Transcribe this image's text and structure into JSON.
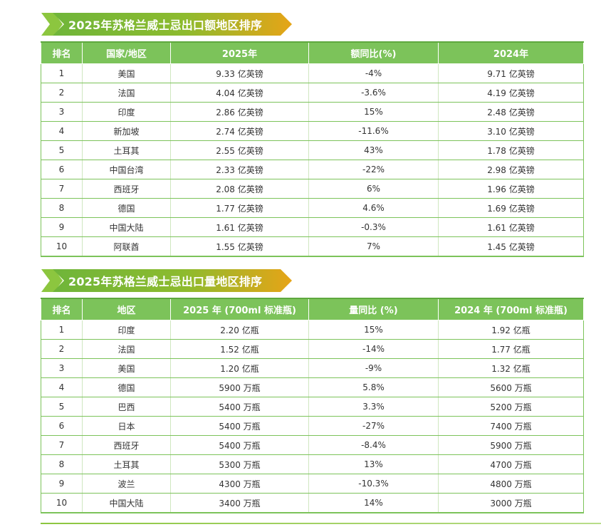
{
  "value_section": {
    "title": "2025年苏格兰威士忌出口额地区排序",
    "headers": [
      "排名",
      "国家/地区",
      "2025年",
      "额同比(%)",
      "2024年"
    ],
    "rows": [
      {
        "rank": "1",
        "region": "美国",
        "y2025": "9.33 亿英镑",
        "yoy": "-4%",
        "trend": "neg",
        "y2024": "9.71 亿英镑"
      },
      {
        "rank": "2",
        "region": "法国",
        "y2025": "4.04 亿英镑",
        "yoy": "-3.6%",
        "trend": "neg",
        "y2024": "4.19 亿英镑"
      },
      {
        "rank": "3",
        "region": "印度",
        "y2025": "2.86 亿英镑",
        "yoy": "15%",
        "trend": "pos",
        "y2024": "2.48 亿英镑"
      },
      {
        "rank": "4",
        "region": "新加坡",
        "y2025": "2.74 亿英镑",
        "yoy": "-11.6%",
        "trend": "neg",
        "y2024": "3.10 亿英镑"
      },
      {
        "rank": "5",
        "region": "土耳其",
        "y2025": "2.55 亿英镑",
        "yoy": "43%",
        "trend": "pos",
        "y2024": "1.78 亿英镑"
      },
      {
        "rank": "6",
        "region": "中国台湾",
        "y2025": "2.33 亿英镑",
        "yoy": "-22%",
        "trend": "neg",
        "y2024": "2.98 亿英镑"
      },
      {
        "rank": "7",
        "region": "西班牙",
        "y2025": "2.08 亿英镑",
        "yoy": "6%",
        "trend": "pos",
        "y2024": "1.96 亿英镑"
      },
      {
        "rank": "8",
        "region": "德国",
        "y2025": "1.77 亿英镑",
        "yoy": "4.6%",
        "trend": "pos",
        "y2024": "1.69 亿英镑"
      },
      {
        "rank": "9",
        "region": "中国大陆",
        "y2025": "1.61 亿英镑",
        "yoy": "-0.3%",
        "trend": "neg",
        "y2024": "1.61 亿英镑"
      },
      {
        "rank": "10",
        "region": "阿联酋",
        "y2025": "1.55 亿英镑",
        "yoy": "7%",
        "trend": "pos",
        "y2024": "1.45 亿英镑"
      }
    ]
  },
  "volume_section": {
    "title": "2025年苏格兰威士忌出口量地区排序",
    "headers": [
      "排名",
      "地区",
      "2025 年 (700ml 标准瓶)",
      "量同比 (%)",
      "2024 年 (700ml 标准瓶)"
    ],
    "rows": [
      {
        "rank": "1",
        "region": "印度",
        "y2025": "2.20 亿瓶",
        "yoy": "15%",
        "trend": "pos",
        "y2024": "1.92 亿瓶"
      },
      {
        "rank": "2",
        "region": "法国",
        "y2025": "1.52 亿瓶",
        "yoy": "-14%",
        "trend": "neg",
        "y2024": "1.77 亿瓶"
      },
      {
        "rank": "3",
        "region": "美国",
        "y2025": "1.20 亿瓶",
        "yoy": "-9%",
        "trend": "neg",
        "y2024": "1.32 亿瓶"
      },
      {
        "rank": "4",
        "region": "德国",
        "y2025": "5900 万瓶",
        "yoy": "5.8%",
        "trend": "pos",
        "y2024": "5600 万瓶"
      },
      {
        "rank": "5",
        "region": "巴西",
        "y2025": "5400 万瓶",
        "yoy": "3.3%",
        "trend": "pos",
        "y2024": "5200 万瓶"
      },
      {
        "rank": "6",
        "region": "日本",
        "y2025": "5400 万瓶",
        "yoy": "-27%",
        "trend": "neg",
        "y2024": "7400 万瓶"
      },
      {
        "rank": "7",
        "region": "西班牙",
        "y2025": "5400 万瓶",
        "yoy": "-8.4%",
        "trend": "neg",
        "y2024": "5900 万瓶"
      },
      {
        "rank": "8",
        "region": "土耳其",
        "y2025": "5300 万瓶",
        "yoy": "13%",
        "trend": "pos",
        "y2024": "4700 万瓶"
      },
      {
        "rank": "9",
        "region": "波兰",
        "y2025": "4300 万瓶",
        "yoy": "-10.3%",
        "trend": "neg",
        "y2024": "4800 万瓶"
      },
      {
        "rank": "10",
        "region": "中国大陆",
        "y2025": "3400 万瓶",
        "yoy": "14%",
        "trend": "pos",
        "y2024": "3000 万瓶"
      }
    ]
  },
  "colors": {
    "header_green": "#7cc35a",
    "positive_red": "#e0383b",
    "negative_green": "#5eae3a",
    "banner_orange": "#e6a417"
  }
}
